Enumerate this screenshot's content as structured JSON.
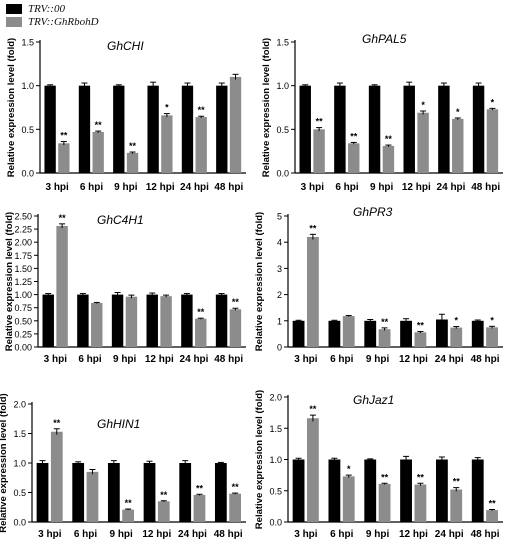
{
  "legend": {
    "items": [
      {
        "label": "TRV::00",
        "color": "#000000"
      },
      {
        "label": "TRV::GhRbohD",
        "color": "#8c8c8c"
      }
    ]
  },
  "chart_data": [
    {
      "type": "bar",
      "title": "GhCHI",
      "ylabel": "Relative expression level (fold)",
      "categories": [
        "3 hpi",
        "6 hpi",
        "9 hpi",
        "12 hpi",
        "24 hpi",
        "48 hpi"
      ],
      "ylim": [
        0,
        1.5
      ],
      "yticks": [
        0.0,
        0.5,
        1.0,
        1.5
      ],
      "ytick_labels": [
        "0.0",
        "0.5",
        "1.0",
        "1.5"
      ],
      "series": [
        {
          "name": "TRV::00",
          "values": [
            1.0,
            1.0,
            1.0,
            1.0,
            1.0,
            1.0
          ],
          "errors": [
            0.01,
            0.03,
            0.01,
            0.04,
            0.03,
            0.03
          ]
        },
        {
          "name": "TRV::GhRbohD",
          "values": [
            0.34,
            0.47,
            0.23,
            0.66,
            0.64,
            1.1
          ],
          "errors": [
            0.02,
            0.01,
            0.01,
            0.02,
            0.01,
            0.03
          ]
        }
      ],
      "significance": [
        "**",
        "**",
        "**",
        "*",
        "**",
        ""
      ]
    },
    {
      "type": "bar",
      "title": "GhPAL5",
      "ylabel": "Relative expression level (fold)",
      "categories": [
        "3 hpi",
        "6 hpi",
        "9 hpi",
        "12 hpi",
        "24 hpi",
        "48 hpi"
      ],
      "ylim": [
        0,
        1.5
      ],
      "yticks": [
        0.0,
        0.5,
        1.0,
        1.5
      ],
      "ytick_labels": [
        "0.0",
        "0.5",
        "1.0",
        "1.5"
      ],
      "series": [
        {
          "name": "TRV::00",
          "values": [
            1.0,
            1.0,
            1.0,
            1.0,
            1.0,
            1.0
          ],
          "errors": [
            0.01,
            0.03,
            0.01,
            0.04,
            0.03,
            0.03
          ]
        },
        {
          "name": "TRV::GhRbohD",
          "values": [
            0.5,
            0.34,
            0.31,
            0.69,
            0.62,
            0.73
          ],
          "errors": [
            0.02,
            0.01,
            0.01,
            0.02,
            0.01,
            0.01
          ]
        }
      ],
      "significance": [
        "**",
        "**",
        "**",
        "*",
        "*",
        "*"
      ]
    },
    {
      "type": "bar",
      "title": "GhC4H1",
      "ylabel": "Relative expression level (fold)",
      "categories": [
        "3 hpi",
        "6 hpi",
        "9 hpi",
        "12 hpi",
        "24 hpi",
        "48 hpi"
      ],
      "ylim": [
        0,
        2.5
      ],
      "yticks": [
        0.0,
        0.25,
        0.5,
        0.75,
        1.0,
        1.25,
        1.5,
        1.75,
        2.0,
        2.25,
        2.5
      ],
      "ytick_labels": [
        "0.00",
        "0.25",
        "0.50",
        "0.75",
        "1.00",
        "1.25",
        "1.50",
        "1.75",
        "2.00",
        "2.25",
        "2.50"
      ],
      "series": [
        {
          "name": "TRV::00",
          "values": [
            1.0,
            1.0,
            1.0,
            1.0,
            1.0,
            1.0
          ],
          "errors": [
            0.02,
            0.02,
            0.04,
            0.03,
            0.02,
            0.02
          ]
        },
        {
          "name": "TRV::GhRbohD",
          "values": [
            2.31,
            0.84,
            0.96,
            0.97,
            0.54,
            0.72
          ],
          "errors": [
            0.04,
            0.01,
            0.03,
            0.02,
            0.01,
            0.02
          ]
        }
      ],
      "significance": [
        "**",
        "",
        "",
        "",
        "**",
        "**"
      ]
    },
    {
      "type": "bar",
      "title": "GhPR3",
      "ylabel": "Relative expression level (fold)",
      "categories": [
        "3 hpi",
        "6 hpi",
        "9 hpi",
        "12 hpi",
        "24 hpi",
        "48 hpi"
      ],
      "ylim": [
        0,
        5
      ],
      "yticks": [
        0,
        1,
        2,
        3,
        4,
        5
      ],
      "ytick_labels": [
        "0",
        "1",
        "2",
        "3",
        "4",
        "5"
      ],
      "series": [
        {
          "name": "TRV::00",
          "values": [
            1.0,
            1.0,
            1.0,
            1.0,
            1.05,
            1.0
          ],
          "errors": [
            0.02,
            0.02,
            0.05,
            0.08,
            0.2,
            0.03
          ]
        },
        {
          "name": "TRV::GhRbohD",
          "values": [
            4.2,
            1.18,
            0.68,
            0.56,
            0.74,
            0.75
          ],
          "errors": [
            0.1,
            0.02,
            0.05,
            0.03,
            0.04,
            0.04
          ]
        }
      ],
      "significance": [
        "**",
        "",
        "**",
        "**",
        "*",
        "*"
      ]
    },
    {
      "type": "bar",
      "title": "GhHIN1",
      "ylabel": "Relative expression level (fold)",
      "categories": [
        "3 hpi",
        "6 hpi",
        "9 hpi",
        "12 hpi",
        "24 hpi",
        "48 hpi"
      ],
      "ylim": [
        0,
        2.0
      ],
      "yticks": [
        0.0,
        0.5,
        1.0,
        1.5,
        2.0
      ],
      "ytick_labels": [
        "0.0",
        "0.5",
        "1.0",
        "1.5",
        "2.0"
      ],
      "series": [
        {
          "name": "TRV::00",
          "values": [
            1.0,
            1.0,
            1.0,
            1.0,
            1.0,
            1.0
          ],
          "errors": [
            0.04,
            0.02,
            0.04,
            0.03,
            0.04,
            0.01
          ]
        },
        {
          "name": "TRV::GhRbohD",
          "values": [
            1.53,
            0.85,
            0.21,
            0.35,
            0.46,
            0.48
          ],
          "errors": [
            0.05,
            0.04,
            0.01,
            0.01,
            0.01,
            0.01
          ]
        }
      ],
      "significance": [
        "**",
        "",
        "**",
        "**",
        "**",
        "**"
      ]
    },
    {
      "type": "bar",
      "title": "GhJaz1",
      "ylabel": "Relative expression level (fold)",
      "categories": [
        "3 hpi",
        "6 hpi",
        "9 hpi",
        "12 hpi",
        "24 hpi",
        "48 hpi"
      ],
      "ylim": [
        0,
        2.0
      ],
      "yticks": [
        0.0,
        0.5,
        1.0,
        1.5,
        2.0
      ],
      "ytick_labels": [
        "0.0",
        "0.5",
        "1.0",
        "1.5",
        "2.0"
      ],
      "series": [
        {
          "name": "TRV::00",
          "values": [
            1.0,
            1.0,
            1.0,
            1.0,
            1.0,
            1.0
          ],
          "errors": [
            0.02,
            0.02,
            0.01,
            0.05,
            0.04,
            0.03
          ]
        },
        {
          "name": "TRV::GhRbohD",
          "values": [
            1.66,
            0.73,
            0.61,
            0.6,
            0.52,
            0.19
          ],
          "errors": [
            0.05,
            0.02,
            0.01,
            0.02,
            0.03,
            0.01
          ]
        }
      ],
      "significance": [
        "**",
        "*",
        "**",
        "**",
        "**",
        "**"
      ]
    }
  ]
}
